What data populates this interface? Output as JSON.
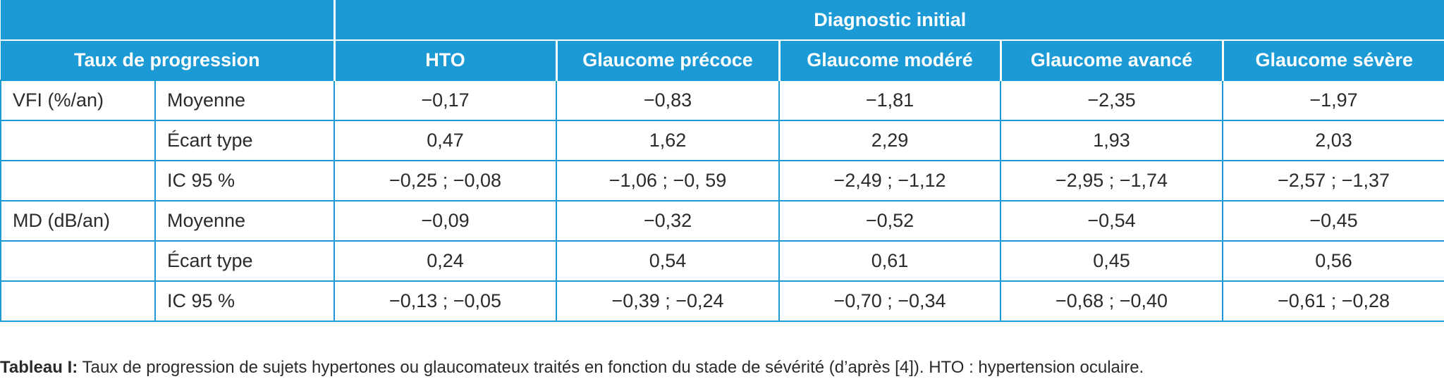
{
  "header": {
    "group_title": "Diagnostic initial",
    "row_title": "Taux de progression",
    "columns": [
      "HTO",
      "Glaucome précoce",
      "Glaucome modéré",
      "Glaucome avancé",
      "Glaucome sévère"
    ]
  },
  "sections": [
    {
      "label": "VFI (%/an)",
      "rows": [
        {
          "stat": "Moyenne",
          "values": [
            "−0,17",
            "−0,83",
            "−1,81",
            "−2,35",
            "−1,97"
          ]
        },
        {
          "stat": "Écart type",
          "values": [
            "0,47",
            "1,62",
            "2,29",
            "1,93",
            "2,03"
          ]
        },
        {
          "stat": "IC 95 %",
          "values": [
            "−0,25 ; −0,08",
            "−1,06 ; −0, 59",
            "−2,49 ; −1,12",
            "−2,95 ; −1,74",
            "−2,57 ; −1,37"
          ]
        }
      ]
    },
    {
      "label": "MD (dB/an)",
      "rows": [
        {
          "stat": "Moyenne",
          "values": [
            "−0,09",
            "−0,32",
            "−0,52",
            "−0,54",
            "−0,45"
          ]
        },
        {
          "stat": "Écart type",
          "values": [
            "0,24",
            "0,54",
            "0,61",
            "0,45",
            "0,56"
          ]
        },
        {
          "stat": "IC 95 %",
          "values": [
            "−0,13 ; −0,05",
            "−0,39 ; −0,24",
            "−0,70 ; −0,34",
            "−0,68 ; −0,40",
            "−0,61 ; −0,28"
          ]
        }
      ]
    }
  ],
  "caption": {
    "label": "Tableau I:",
    "text": "Taux de progression de sujets hypertones ou glaucomateux traités en fonction du stade de sévérité (d’après [4]). HTO : hypertension oculaire."
  }
}
